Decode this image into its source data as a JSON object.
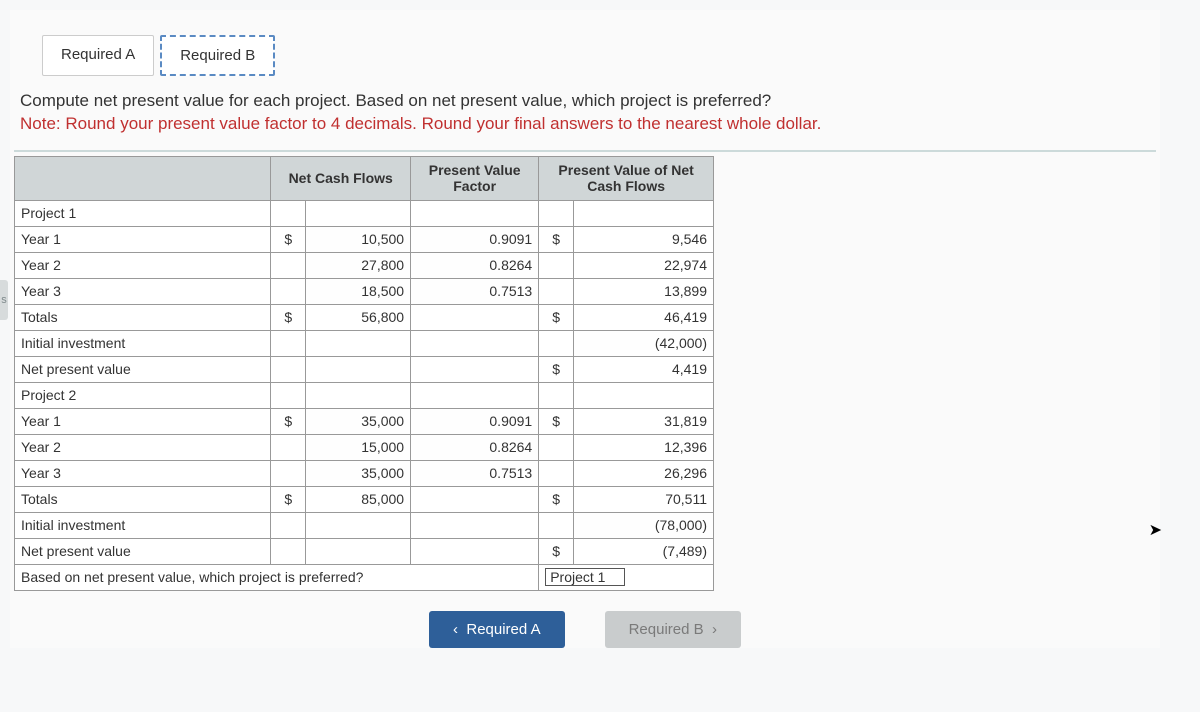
{
  "tabs": {
    "a": "Required A",
    "b": "Required B"
  },
  "instructions": {
    "line1": "Compute net present value for each project. Based on net present value, which project is preferred?",
    "note_key": "Note:",
    "note_text": "Round your present value factor to 4 decimals. Round your final answers to the nearest whole dollar."
  },
  "headers": {
    "blank": "",
    "ncf": "Net Cash Flows",
    "pvf": "Present Value Factor",
    "pvncf": "Present Value of Net Cash Flows"
  },
  "labels": {
    "project1": "Project 1",
    "project2": "Project 2",
    "y1": "Year 1",
    "y2": "Year 2",
    "y3": "Year 3",
    "totals": "Totals",
    "init": "Initial investment",
    "npv": "Net present value",
    "question": "Based on net present value, which project is preferred?"
  },
  "currency": "$",
  "p1": {
    "y1": {
      "ncf": "10,500",
      "pvf": "0.9091",
      "pv": "9,546"
    },
    "y2": {
      "ncf": "27,800",
      "pvf": "0.8264",
      "pv": "22,974"
    },
    "y3": {
      "ncf": "18,500",
      "pvf": "0.7513",
      "pv": "13,899"
    },
    "tot": {
      "ncf": "56,800",
      "pv": "46,419"
    },
    "init": "(42,000)",
    "npv": "4,419"
  },
  "p2": {
    "y1": {
      "ncf": "35,000",
      "pvf": "0.9091",
      "pv": "31,819"
    },
    "y2": {
      "ncf": "15,000",
      "pvf": "0.8264",
      "pv": "12,396"
    },
    "y3": {
      "ncf": "35,000",
      "pvf": "0.7513",
      "pv": "26,296"
    },
    "tot": {
      "ncf": "85,000",
      "pv": "70,511"
    },
    "init": "(78,000)",
    "npv": "(7,489)"
  },
  "answer": "Project 1",
  "nav": {
    "prev_icon": "‹",
    "prev": "Required A",
    "next": "Required B",
    "next_icon": "›"
  },
  "edge_marker": "s",
  "colors": {
    "header_bg": "#d0d6d7",
    "note_red": "#c03030",
    "nav_prev_bg": "#2e5f99",
    "nav_next_bg": "#c9cccd",
    "border": "#999999"
  }
}
